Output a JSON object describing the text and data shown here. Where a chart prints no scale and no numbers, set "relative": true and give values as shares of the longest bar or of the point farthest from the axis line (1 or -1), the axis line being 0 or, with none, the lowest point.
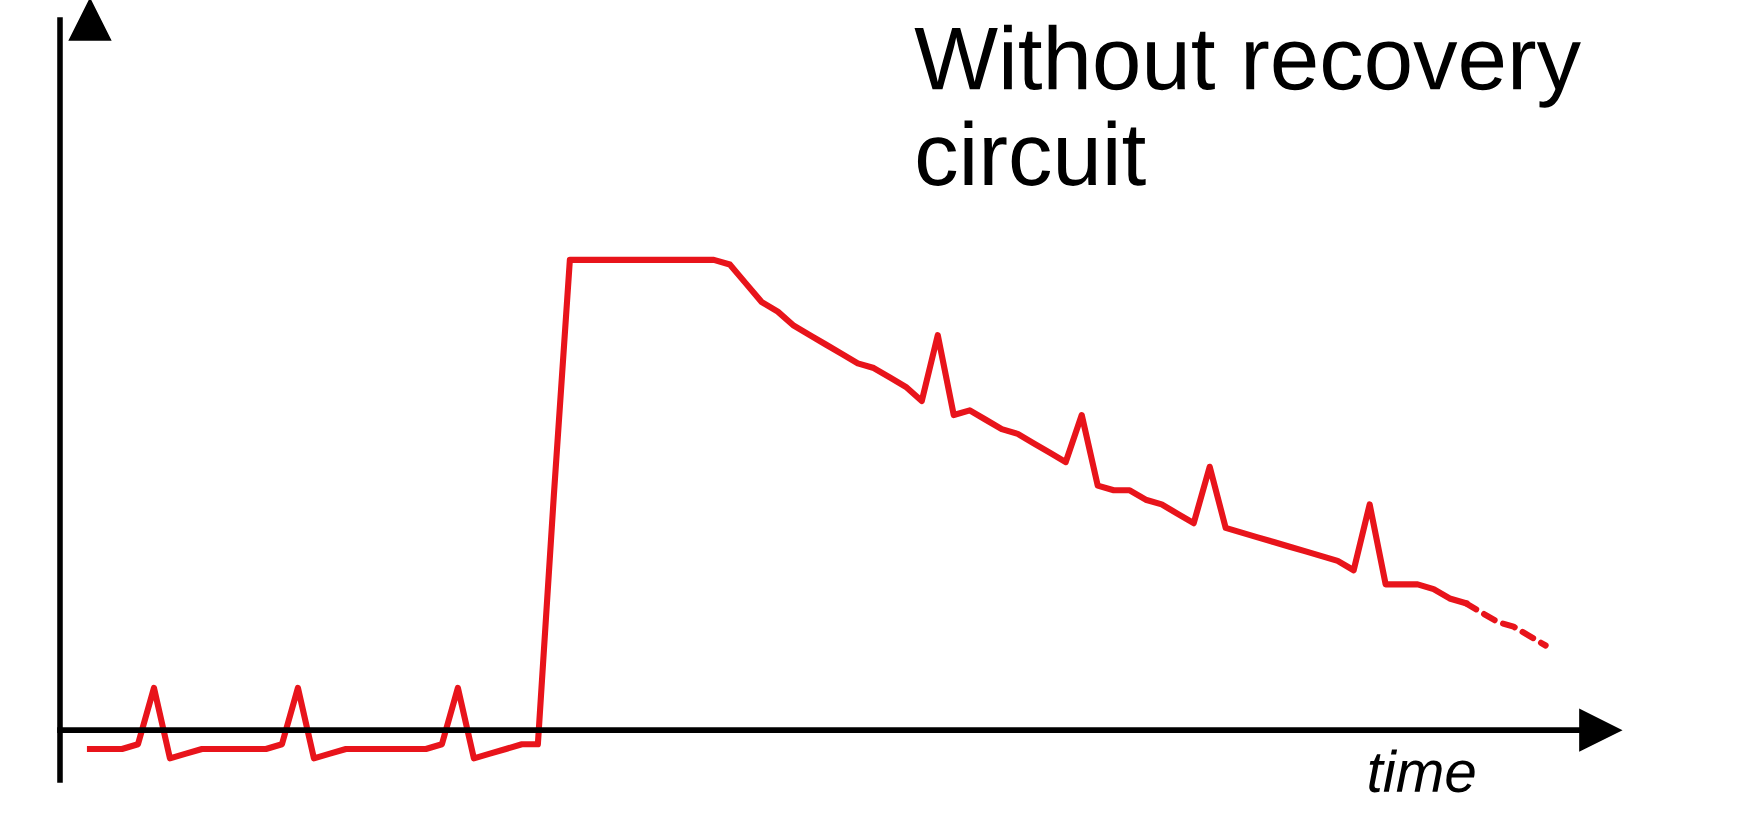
{
  "chart_data": {
    "type": "line",
    "relative": true,
    "xlabel": "time",
    "annotations": [
      "Without recovery circuit"
    ],
    "marker": "none",
    "categories": [
      null,
      null,
      null,
      null,
      null,
      null,
      null,
      null,
      null,
      null,
      null,
      null,
      null,
      null,
      null,
      null,
      null,
      null,
      null,
      null,
      null,
      null,
      null,
      null,
      null,
      null,
      null,
      null,
      null,
      null,
      null,
      null,
      null,
      null,
      null,
      null,
      null,
      null,
      null,
      null,
      null,
      null,
      null,
      null,
      null,
      null,
      null,
      null,
      null,
      null,
      null,
      null,
      null,
      null,
      null,
      null,
      null,
      null,
      null,
      null,
      null,
      null,
      null,
      null,
      null,
      null,
      null,
      null,
      null,
      null,
      null,
      null,
      null,
      null,
      null,
      null,
      null,
      null,
      null,
      null,
      null,
      null,
      null,
      null,
      null,
      null,
      null,
      null,
      null,
      null,
      null,
      null
    ],
    "series": [
      {
        "color": "#e8141b",
        "line_style": "solid",
        "values": [
          -0.04,
          -0.04,
          -0.04,
          -0.03,
          0.09,
          -0.06,
          -0.05,
          -0.04,
          -0.04,
          -0.04,
          -0.04,
          -0.04,
          -0.03,
          0.09,
          -0.06,
          -0.05,
          -0.04,
          -0.04,
          -0.04,
          -0.04,
          -0.04,
          -0.04,
          -0.03,
          0.09,
          -0.06,
          -0.05,
          -0.04,
          -0.03,
          -0.03,
          0.5,
          1.0,
          1.0,
          1.0,
          1.0,
          1.0,
          1.0,
          1.0,
          1.0,
          1.0,
          1.0,
          0.99,
          0.95,
          0.91,
          0.89,
          0.86,
          0.84,
          0.82,
          0.8,
          0.78,
          0.77,
          0.75,
          0.73,
          0.7,
          0.84,
          0.67,
          0.68,
          0.66,
          0.64,
          0.63,
          0.61,
          0.59,
          0.57,
          0.67,
          0.52,
          0.51,
          0.51,
          0.49,
          0.48,
          0.46,
          0.44,
          0.56,
          0.43,
          0.42,
          0.41,
          0.4,
          0.39,
          0.38,
          0.37,
          0.36,
          0.34,
          0.48,
          0.31,
          0.31,
          0.31,
          0.3,
          0.28,
          0.27,
          null,
          null,
          null,
          null,
          null
        ]
      },
      {
        "color": "#e8141b",
        "line_style": "dashed",
        "values": [
          null,
          null,
          null,
          null,
          null,
          null,
          null,
          null,
          null,
          null,
          null,
          null,
          null,
          null,
          null,
          null,
          null,
          null,
          null,
          null,
          null,
          null,
          null,
          null,
          null,
          null,
          null,
          null,
          null,
          null,
          null,
          null,
          null,
          null,
          null,
          null,
          null,
          null,
          null,
          null,
          null,
          null,
          null,
          null,
          null,
          null,
          null,
          null,
          null,
          null,
          null,
          null,
          null,
          null,
          null,
          null,
          null,
          null,
          null,
          null,
          null,
          null,
          null,
          null,
          null,
          null,
          null,
          null,
          null,
          null,
          null,
          null,
          null,
          null,
          null,
          null,
          null,
          null,
          null,
          null,
          null,
          null,
          null,
          null,
          null,
          null,
          0.27,
          0.25,
          0.23,
          0.22,
          0.2,
          0.18
        ]
      }
    ]
  }
}
